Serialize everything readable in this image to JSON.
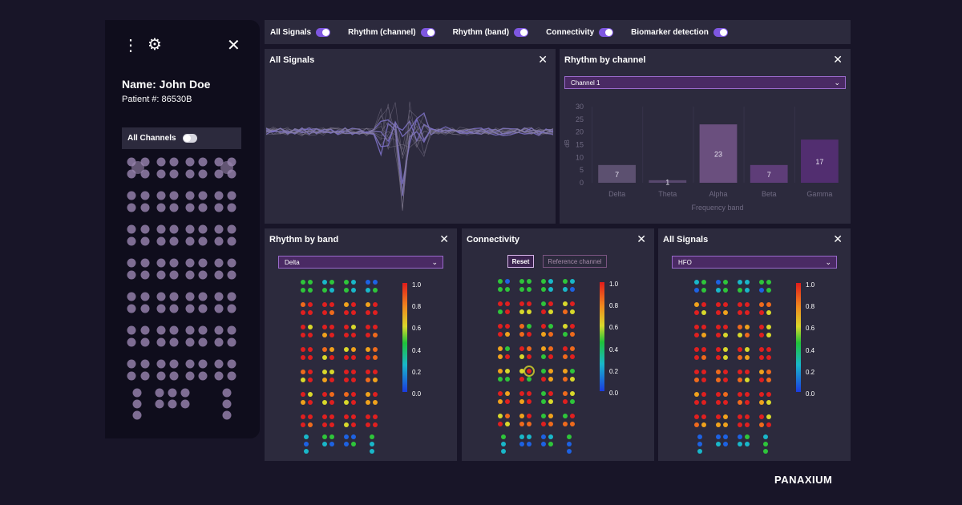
{
  "sidebar": {
    "patient_name": "Name: John Doe",
    "patient_number": "Patient #: 86530B",
    "all_channels_label": "All Channels",
    "all_channels_on": false
  },
  "topbar": {
    "toggles": [
      {
        "label": "All Signals",
        "on": true
      },
      {
        "label": "Rhythm (channel)",
        "on": true
      },
      {
        "label": "Rhythm (band)",
        "on": true
      },
      {
        "label": "Connectivity",
        "on": true
      },
      {
        "label": "Biomarker detection",
        "on": true
      }
    ]
  },
  "panels": {
    "signals": {
      "title": "All Signals"
    },
    "rhythm_channel": {
      "title": "Rhythm by channel",
      "dropdown": "Channel 1"
    },
    "rhythm_band": {
      "title": "Rhythm by band",
      "dropdown": "Delta"
    },
    "connectivity": {
      "title": "Connectivity",
      "reset_label": "Reset",
      "reference_label": "Reference channel"
    },
    "biomarker": {
      "title": "All Signals",
      "dropdown": "HFO"
    }
  },
  "scale_labels": [
    "1.0",
    "0.8",
    "0.6",
    "0.4",
    "0.2",
    "0.0"
  ],
  "chart_data": {
    "type": "bar",
    "categories": [
      "Delta",
      "Theta",
      "Alpha",
      "Beta",
      "Gamma"
    ],
    "values": [
      7,
      1,
      23,
      7,
      17
    ],
    "colors": [
      "#5c5070",
      "#58486e",
      "#6a4f7e",
      "#5e3d78",
      "#522e70"
    ],
    "xlabel": "Frequency band",
    "ylabel": "dB",
    "yticks": [
      30,
      25,
      20,
      15,
      10,
      5,
      0
    ],
    "ylim": [
      0,
      30
    ]
  },
  "colors": {
    "accent": "#7e57e0",
    "panel": "#2c2a3d",
    "background": "#181528"
  },
  "brand": "PANAXIUM"
}
